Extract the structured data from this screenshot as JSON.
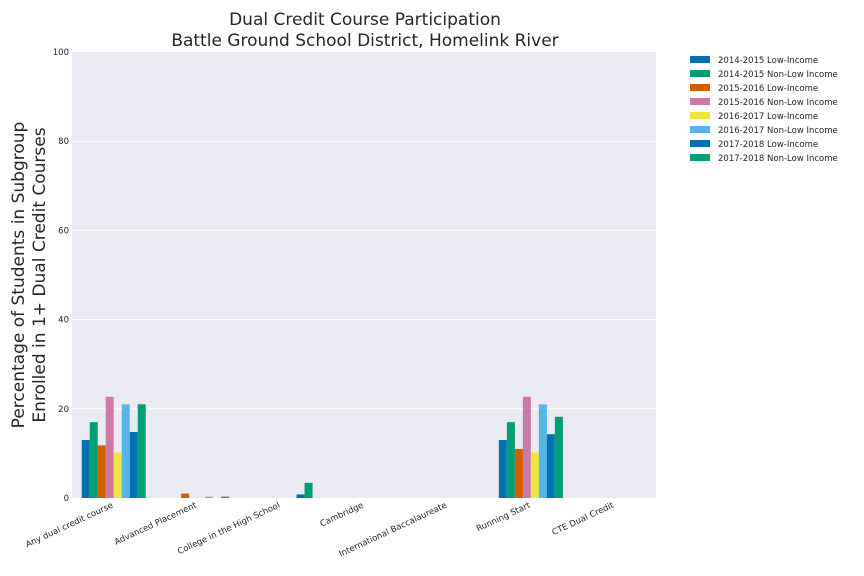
{
  "chart_data": {
    "type": "bar",
    "title_line1": "Dual Credit Course Participation",
    "title_line2": "Battle Ground School District, Homelink River",
    "xlabel": "",
    "ylabel_line1": "Percentage of Students in Subgroup",
    "ylabel_line2": "Enrolled in 1+ Dual Credit Courses",
    "ylim": [
      0,
      100
    ],
    "yticks": [
      0,
      20,
      40,
      60,
      80,
      100
    ],
    "grid": true,
    "legend_position": "outside-top-right",
    "categories": [
      "Any dual credit course",
      "Advanced Placement",
      "College in the High School",
      "Cambridge",
      "International Baccalaureate",
      "Running Start",
      "CTE Dual Credit"
    ],
    "series": [
      {
        "name": "2014-2015 Low-Income",
        "color": "#0072b2",
        "values": [
          13.0,
          0,
          0,
          0,
          0,
          13.0,
          0
        ]
      },
      {
        "name": "2014-2015 Non-Low Income",
        "color": "#009e73",
        "values": [
          17.0,
          0,
          0,
          0,
          0,
          17.0,
          0
        ]
      },
      {
        "name": "2015-2016 Low-Income",
        "color": "#d55e00",
        "values": [
          11.8,
          1.0,
          0,
          0,
          0,
          11.0,
          0
        ]
      },
      {
        "name": "2015-2016 Non-Low Income",
        "color": "#cc79a7",
        "values": [
          22.7,
          0,
          0,
          0,
          0,
          22.7,
          0
        ]
      },
      {
        "name": "2016-2017 Low-Income",
        "color": "#f0e442",
        "values": [
          10.2,
          0,
          0,
          0,
          0,
          10.2,
          0
        ]
      },
      {
        "name": "2016-2017 Non-Low Income",
        "color": "#56b4e9",
        "values": [
          21.0,
          0.3,
          0,
          0,
          0,
          21.0,
          0
        ]
      },
      {
        "name": "2017-2018 Low-Income",
        "color": "#0072b2",
        "values": [
          14.8,
          0,
          0.8,
          0,
          0,
          14.3,
          0
        ]
      },
      {
        "name": "2017-2018 Non-Low Income",
        "color": "#009e73",
        "values": [
          21.0,
          0.3,
          3.4,
          0,
          0,
          18.2,
          0
        ]
      }
    ]
  }
}
